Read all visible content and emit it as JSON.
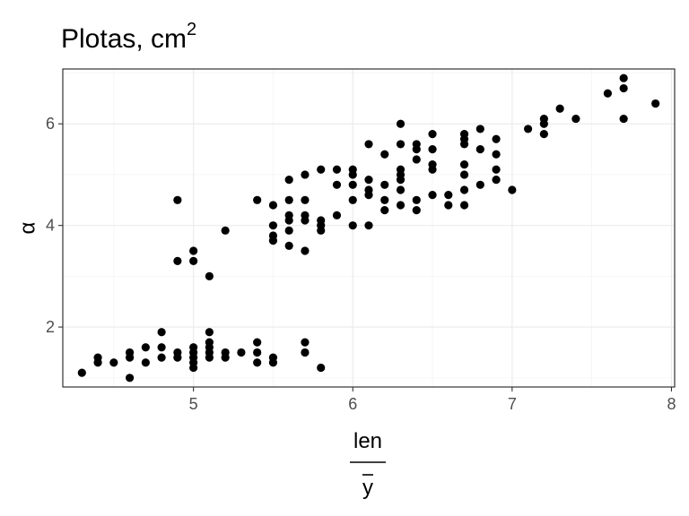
{
  "chart_data": {
    "type": "scatter",
    "title": "Plotas, cm",
    "title_superscript": "2",
    "xlabel_numerator": "len",
    "xlabel_denominator": "y",
    "ylabel": "α",
    "xlim": [
      4.18,
      8.02
    ],
    "ylim": [
      0.82,
      7.08
    ],
    "x_ticks": [
      5,
      6,
      7,
      8
    ],
    "y_ticks": [
      2,
      4,
      6
    ],
    "x_tick_labels": [
      "5",
      "6",
      "7",
      "8"
    ],
    "y_tick_labels": [
      "2",
      "4",
      "6"
    ],
    "grid": true,
    "legend": "none",
    "point_color": "#000000",
    "points": [
      [
        4.3,
        1.1
      ],
      [
        4.4,
        1.3
      ],
      [
        4.4,
        1.4
      ],
      [
        4.5,
        1.3
      ],
      [
        4.6,
        1.0
      ],
      [
        4.6,
        1.4
      ],
      [
        4.6,
        1.5
      ],
      [
        4.7,
        1.3
      ],
      [
        4.7,
        1.6
      ],
      [
        4.8,
        1.4
      ],
      [
        4.8,
        1.6
      ],
      [
        4.8,
        1.9
      ],
      [
        4.9,
        1.4
      ],
      [
        4.9,
        1.5
      ],
      [
        5.0,
        1.2
      ],
      [
        5.0,
        1.3
      ],
      [
        5.0,
        1.4
      ],
      [
        5.0,
        1.5
      ],
      [
        5.0,
        1.6
      ],
      [
        5.1,
        1.4
      ],
      [
        5.1,
        1.5
      ],
      [
        5.1,
        1.6
      ],
      [
        5.1,
        1.7
      ],
      [
        5.1,
        1.9
      ],
      [
        5.2,
        1.4
      ],
      [
        5.2,
        1.5
      ],
      [
        5.3,
        1.5
      ],
      [
        5.4,
        1.3
      ],
      [
        5.4,
        1.5
      ],
      [
        5.4,
        1.7
      ],
      [
        5.5,
        1.3
      ],
      [
        5.5,
        1.4
      ],
      [
        5.7,
        1.5
      ],
      [
        5.7,
        1.7
      ],
      [
        5.8,
        1.2
      ],
      [
        4.9,
        3.3
      ],
      [
        4.9,
        4.5
      ],
      [
        5.0,
        3.3
      ],
      [
        5.0,
        3.5
      ],
      [
        5.1,
        3.0
      ],
      [
        5.2,
        3.9
      ],
      [
        5.4,
        4.5
      ],
      [
        5.5,
        3.7
      ],
      [
        5.5,
        3.8
      ],
      [
        5.5,
        4.0
      ],
      [
        5.5,
        4.4
      ],
      [
        5.6,
        3.6
      ],
      [
        5.6,
        3.9
      ],
      [
        5.6,
        4.1
      ],
      [
        5.6,
        4.2
      ],
      [
        5.6,
        4.5
      ],
      [
        5.6,
        4.9
      ],
      [
        5.7,
        3.5
      ],
      [
        5.7,
        4.1
      ],
      [
        5.7,
        4.2
      ],
      [
        5.7,
        4.5
      ],
      [
        5.7,
        5.0
      ],
      [
        5.8,
        3.9
      ],
      [
        5.8,
        4.0
      ],
      [
        5.8,
        4.1
      ],
      [
        5.8,
        5.1
      ],
      [
        5.9,
        4.2
      ],
      [
        5.9,
        4.8
      ],
      [
        5.9,
        5.1
      ],
      [
        6.0,
        4.0
      ],
      [
        6.0,
        4.5
      ],
      [
        6.0,
        4.8
      ],
      [
        6.0,
        5.0
      ],
      [
        6.0,
        5.1
      ],
      [
        6.1,
        4.0
      ],
      [
        6.1,
        4.6
      ],
      [
        6.1,
        4.7
      ],
      [
        6.1,
        4.9
      ],
      [
        6.1,
        5.6
      ],
      [
        6.2,
        4.3
      ],
      [
        6.2,
        4.5
      ],
      [
        6.2,
        4.8
      ],
      [
        6.2,
        5.4
      ],
      [
        6.3,
        4.4
      ],
      [
        6.3,
        4.7
      ],
      [
        6.3,
        4.9
      ],
      [
        6.3,
        5.0
      ],
      [
        6.3,
        5.1
      ],
      [
        6.3,
        5.6
      ],
      [
        6.3,
        6.0
      ],
      [
        6.4,
        4.3
      ],
      [
        6.4,
        4.5
      ],
      [
        6.4,
        5.3
      ],
      [
        6.4,
        5.5
      ],
      [
        6.4,
        5.6
      ],
      [
        6.5,
        4.6
      ],
      [
        6.5,
        5.1
      ],
      [
        6.5,
        5.2
      ],
      [
        6.5,
        5.5
      ],
      [
        6.5,
        5.8
      ],
      [
        6.6,
        4.4
      ],
      [
        6.6,
        4.6
      ],
      [
        6.7,
        4.4
      ],
      [
        6.7,
        4.7
      ],
      [
        6.7,
        5.0
      ],
      [
        6.7,
        5.2
      ],
      [
        6.7,
        5.6
      ],
      [
        6.7,
        5.7
      ],
      [
        6.7,
        5.8
      ],
      [
        6.8,
        4.8
      ],
      [
        6.8,
        5.5
      ],
      [
        6.8,
        5.9
      ],
      [
        6.9,
        4.9
      ],
      [
        6.9,
        5.1
      ],
      [
        6.9,
        5.4
      ],
      [
        6.9,
        5.7
      ],
      [
        7.0,
        4.7
      ],
      [
        7.1,
        5.9
      ],
      [
        7.2,
        5.8
      ],
      [
        7.2,
        6.0
      ],
      [
        7.2,
        6.1
      ],
      [
        7.3,
        6.3
      ],
      [
        7.4,
        6.1
      ],
      [
        7.6,
        6.6
      ],
      [
        7.7,
        6.1
      ],
      [
        7.7,
        6.7
      ],
      [
        7.7,
        6.9
      ],
      [
        7.9,
        6.4
      ]
    ]
  }
}
